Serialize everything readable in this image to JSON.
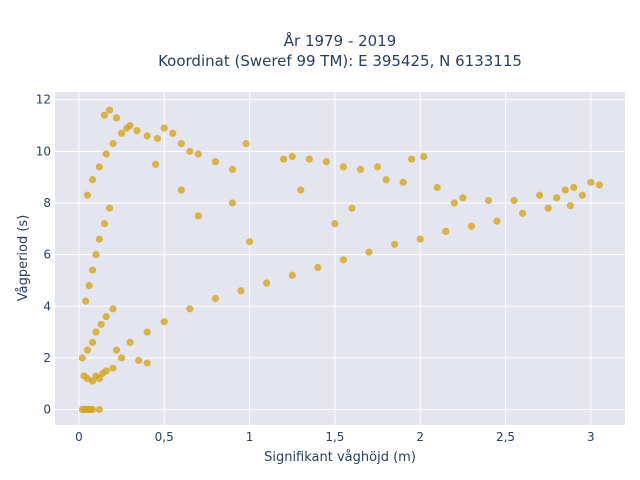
{
  "chart_data": {
    "type": "scatter",
    "title_line1": "År 1979 - 2019",
    "title_line2": "Koordinat (Sweref 99 TM): E 395425, N 6133115",
    "xlabel": "Signifikant våghöjd (m)",
    "ylabel": "Vågperiod (s)",
    "xlim": [
      -0.14,
      3.2
    ],
    "ylim": [
      -0.6,
      12.3
    ],
    "x_ticks": [
      {
        "value": 0,
        "label": "0"
      },
      {
        "value": 0.5,
        "label": "0,5"
      },
      {
        "value": 1,
        "label": "1"
      },
      {
        "value": 1.5,
        "label": "1,5"
      },
      {
        "value": 2,
        "label": "2"
      },
      {
        "value": 2.5,
        "label": "2,5"
      },
      {
        "value": 3,
        "label": "3"
      }
    ],
    "y_ticks": [
      {
        "value": 0,
        "label": "0"
      },
      {
        "value": 2,
        "label": "2"
      },
      {
        "value": 4,
        "label": "4"
      },
      {
        "value": 6,
        "label": "6"
      },
      {
        "value": 8,
        "label": "8"
      },
      {
        "value": 10,
        "label": "10"
      },
      {
        "value": 12,
        "label": "12"
      }
    ],
    "grid": true,
    "marker_color": "#d4a520",
    "plot_bg": "#e5e5ef",
    "points": [
      [
        0.02,
        0
      ],
      [
        0.03,
        0
      ],
      [
        0.04,
        0
      ],
      [
        0.05,
        0
      ],
      [
        0.06,
        0
      ],
      [
        0.07,
        0
      ],
      [
        0.08,
        0
      ],
      [
        0.12,
        0
      ],
      [
        0.03,
        1.3
      ],
      [
        0.05,
        1.2
      ],
      [
        0.08,
        1.1
      ],
      [
        0.1,
        1.3
      ],
      [
        0.12,
        1.2
      ],
      [
        0.14,
        1.4
      ],
      [
        0.16,
        1.5
      ],
      [
        0.02,
        2.0
      ],
      [
        0.05,
        2.3
      ],
      [
        0.08,
        2.6
      ],
      [
        0.1,
        3.0
      ],
      [
        0.13,
        3.3
      ],
      [
        0.16,
        3.6
      ],
      [
        0.2,
        3.9
      ],
      [
        0.04,
        4.2
      ],
      [
        0.06,
        4.8
      ],
      [
        0.08,
        5.4
      ],
      [
        0.1,
        6.0
      ],
      [
        0.12,
        6.6
      ],
      [
        0.15,
        7.2
      ],
      [
        0.18,
        7.8
      ],
      [
        0.05,
        8.3
      ],
      [
        0.08,
        8.9
      ],
      [
        0.12,
        9.4
      ],
      [
        0.16,
        9.9
      ],
      [
        0.2,
        10.3
      ],
      [
        0.25,
        10.7
      ],
      [
        0.3,
        11.0
      ],
      [
        0.15,
        11.4
      ],
      [
        0.18,
        11.6
      ],
      [
        0.22,
        11.3
      ],
      [
        0.28,
        10.9
      ],
      [
        0.34,
        10.8
      ],
      [
        0.4,
        10.6
      ],
      [
        0.46,
        10.5
      ],
      [
        0.5,
        10.9
      ],
      [
        0.55,
        10.7
      ],
      [
        0.6,
        10.3
      ],
      [
        0.65,
        10.0
      ],
      [
        0.7,
        9.9
      ],
      [
        0.8,
        9.6
      ],
      [
        0.9,
        9.3
      ],
      [
        0.98,
        10.3
      ],
      [
        1.2,
        9.7
      ],
      [
        1.25,
        9.8
      ],
      [
        1.35,
        9.7
      ],
      [
        1.45,
        9.6
      ],
      [
        1.55,
        9.4
      ],
      [
        1.65,
        9.3
      ],
      [
        1.75,
        9.4
      ],
      [
        1.95,
        9.7
      ],
      [
        2.02,
        9.8
      ],
      [
        1.8,
        8.9
      ],
      [
        1.9,
        8.8
      ],
      [
        2.1,
        8.6
      ],
      [
        2.25,
        8.2
      ],
      [
        2.4,
        8.1
      ],
      [
        2.55,
        8.1
      ],
      [
        2.7,
        8.3
      ],
      [
        2.8,
        8.2
      ],
      [
        2.85,
        8.5
      ],
      [
        2.9,
        8.6
      ],
      [
        3.0,
        8.8
      ],
      [
        3.05,
        8.7
      ],
      [
        2.95,
        8.3
      ],
      [
        2.88,
        7.9
      ],
      [
        2.75,
        7.8
      ],
      [
        2.6,
        7.6
      ],
      [
        2.45,
        7.3
      ],
      [
        2.3,
        7.1
      ],
      [
        2.15,
        6.9
      ],
      [
        2.0,
        6.6
      ],
      [
        1.85,
        6.4
      ],
      [
        1.7,
        6.1
      ],
      [
        1.55,
        5.8
      ],
      [
        1.4,
        5.5
      ],
      [
        1.25,
        5.2
      ],
      [
        1.1,
        4.9
      ],
      [
        0.95,
        4.6
      ],
      [
        0.8,
        4.3
      ],
      [
        0.65,
        3.9
      ],
      [
        0.5,
        3.4
      ],
      [
        0.4,
        3.0
      ],
      [
        0.3,
        2.6
      ],
      [
        0.25,
        2.0
      ],
      [
        0.35,
        1.9
      ],
      [
        0.4,
        1.8
      ],
      [
        0.2,
        1.6
      ],
      [
        0.22,
        2.3
      ],
      [
        1.0,
        6.5
      ],
      [
        1.5,
        7.2
      ],
      [
        0.6,
        8.5
      ],
      [
        0.7,
        7.5
      ],
      [
        0.9,
        8.0
      ],
      [
        1.3,
        8.5
      ],
      [
        1.6,
        7.8
      ],
      [
        2.2,
        8.0
      ],
      [
        0.45,
        9.5
      ]
    ]
  }
}
